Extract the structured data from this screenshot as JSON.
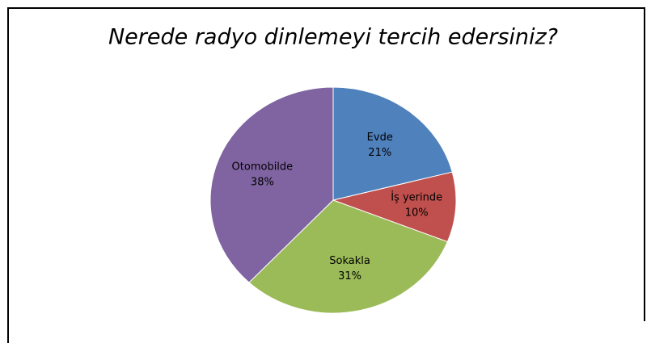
{
  "chart_data": {
    "type": "pie",
    "title": "Nerede radyo dinlemeyi tercih edersiniz?",
    "categories": [
      "Evde",
      "İş yerinde",
      "Sokakla",
      "Otomobilde"
    ],
    "values": [
      21,
      10,
      31,
      38
    ],
    "value_labels": [
      "21%",
      "10%",
      "31%",
      "38%"
    ],
    "colors": [
      "#4f81bd",
      "#c0504d",
      "#9bbb59",
      "#8064a2"
    ]
  }
}
